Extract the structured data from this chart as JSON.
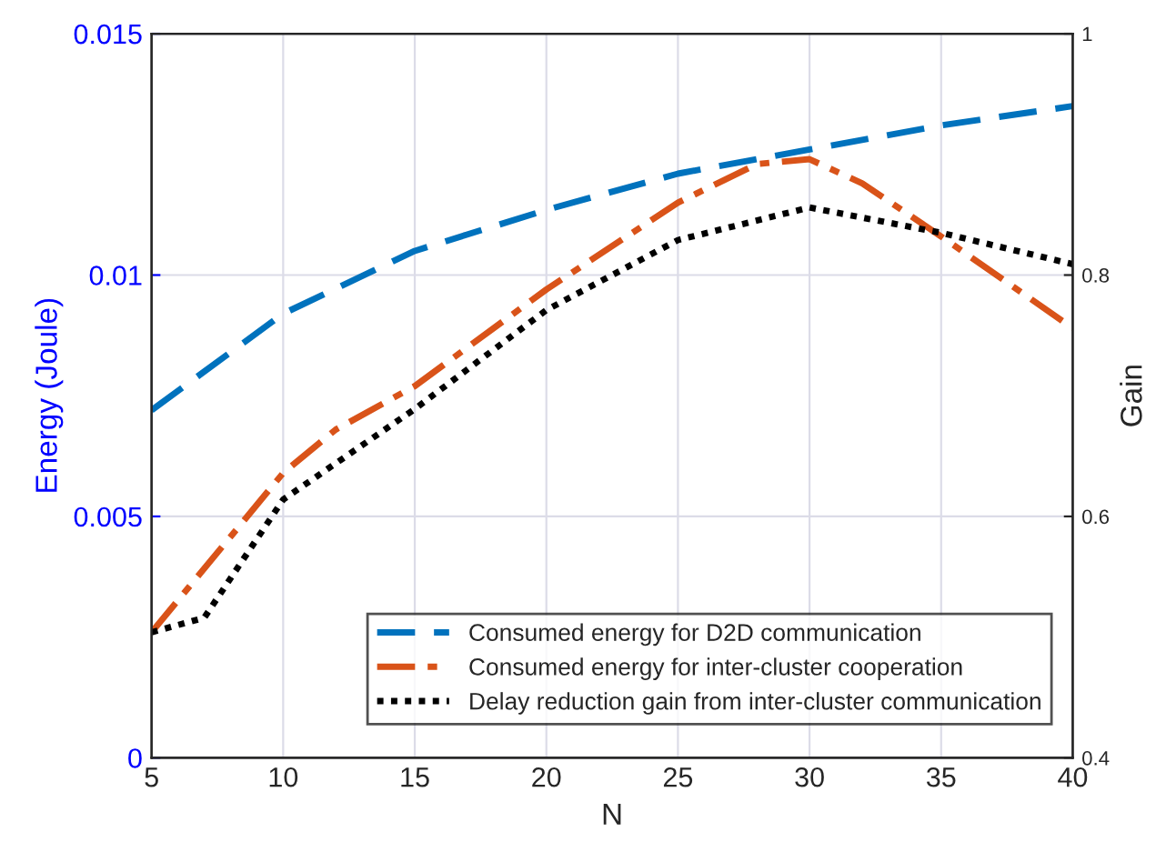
{
  "chart_data": {
    "type": "line",
    "xlabel": "N",
    "ylabel": "Energy (Joule)",
    "y2label": "Gain",
    "xlim": [
      5,
      40
    ],
    "xticks": [
      5,
      10,
      15,
      20,
      25,
      30,
      35,
      40
    ],
    "ylim": [
      0,
      0.015
    ],
    "yticks": [
      0,
      0.005,
      0.01,
      0.015
    ],
    "y2lim": [
      0.4,
      1
    ],
    "y2ticks": [
      0.4,
      0.6,
      0.8,
      1
    ],
    "grid": true,
    "legend": "bottom right",
    "marker": "none",
    "series": [
      {
        "name": "Consumed energy for D2D communication",
        "color": "#0072bd",
        "line_style": "dashed",
        "x": [
          5,
          10,
          15,
          20,
          25,
          30,
          35,
          40
        ],
        "values": [
          0.0072,
          0.0092,
          0.0105,
          0.01135,
          0.0121,
          0.0126,
          0.0131,
          0.0135
        ]
      },
      {
        "name": "Consumed energy for inter-cluster cooperation",
        "color": "#d95319",
        "line_style": "dashdot",
        "x": [
          5,
          10,
          12,
          15,
          20,
          25,
          28,
          30,
          32,
          35,
          40
        ],
        "values": [
          0.0026,
          0.0059,
          0.0068,
          0.0077,
          0.0097,
          0.0115,
          0.0123,
          0.0124,
          0.0119,
          0.0108,
          0.0089
        ]
      },
      {
        "name": "Delay reduction gain from inter-cluster communication",
        "color": "#000000",
        "line_style": "dotted",
        "axis": "y2",
        "x": [
          5,
          7,
          10,
          15,
          20,
          25,
          30,
          35,
          40
        ],
        "values": [
          0.504,
          0.516,
          0.614,
          0.689,
          0.771,
          0.829,
          0.856,
          0.835,
          0.809
        ]
      }
    ]
  }
}
